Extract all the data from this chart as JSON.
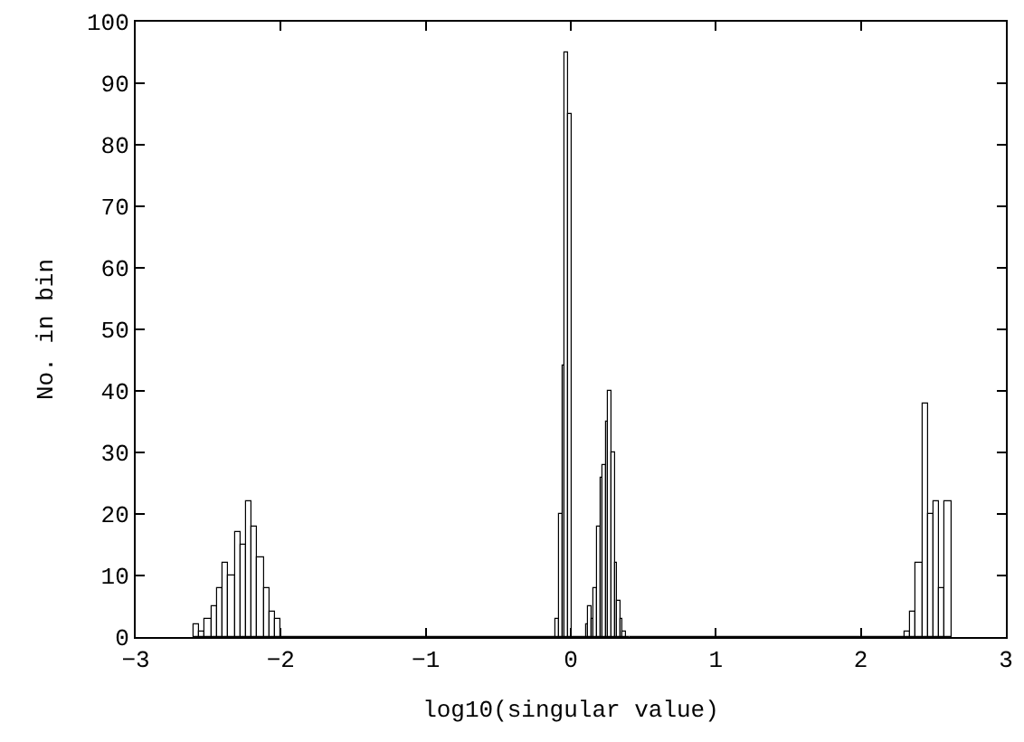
{
  "chart_data": {
    "type": "histogram",
    "xlabel": "log10(singular value)",
    "ylabel": "No. in bin",
    "color": "#000000",
    "bins": [
      -2.6,
      -2.56,
      -2.52,
      -2.48,
      -2.44,
      -2.4,
      -2.36,
      -2.32,
      -2.28,
      -2.24,
      -2.2,
      -2.16,
      -2.12,
      -2.08,
      -2.04,
      -2.0,
      -0.1,
      -0.08,
      -0.06,
      -0.04,
      -0.02,
      0.0,
      0.1,
      0.12,
      0.14,
      0.16,
      0.18,
      0.2,
      0.22,
      0.24,
      0.26,
      0.28,
      0.3,
      0.32,
      0.34,
      0.36,
      0.38,
      0.4,
      2.3,
      2.34,
      2.38,
      2.42,
      2.46,
      2.5,
      2.54,
      2.58,
      2.62
    ],
    "values": [
      2,
      1,
      3,
      5,
      8,
      12,
      10,
      17,
      15,
      22,
      18,
      13,
      8,
      4,
      3,
      0,
      3,
      20,
      44,
      95,
      85,
      0,
      2,
      5,
      3,
      8,
      18,
      26,
      28,
      35,
      40,
      30,
      12,
      6,
      3,
      1,
      0,
      0,
      1,
      4,
      12,
      38,
      20,
      22,
      8,
      22
    ],
    "xlim": [
      -3,
      3
    ],
    "ylim": [
      0,
      100
    ],
    "xticks": [
      {
        "value": -3,
        "label": "−3"
      },
      {
        "value": -2,
        "label": "−2"
      },
      {
        "value": -1,
        "label": "−1"
      },
      0,
      1,
      2,
      3
    ],
    "yticks": [
      0,
      10,
      20,
      30,
      40,
      50,
      60,
      70,
      80,
      90,
      100
    ]
  }
}
